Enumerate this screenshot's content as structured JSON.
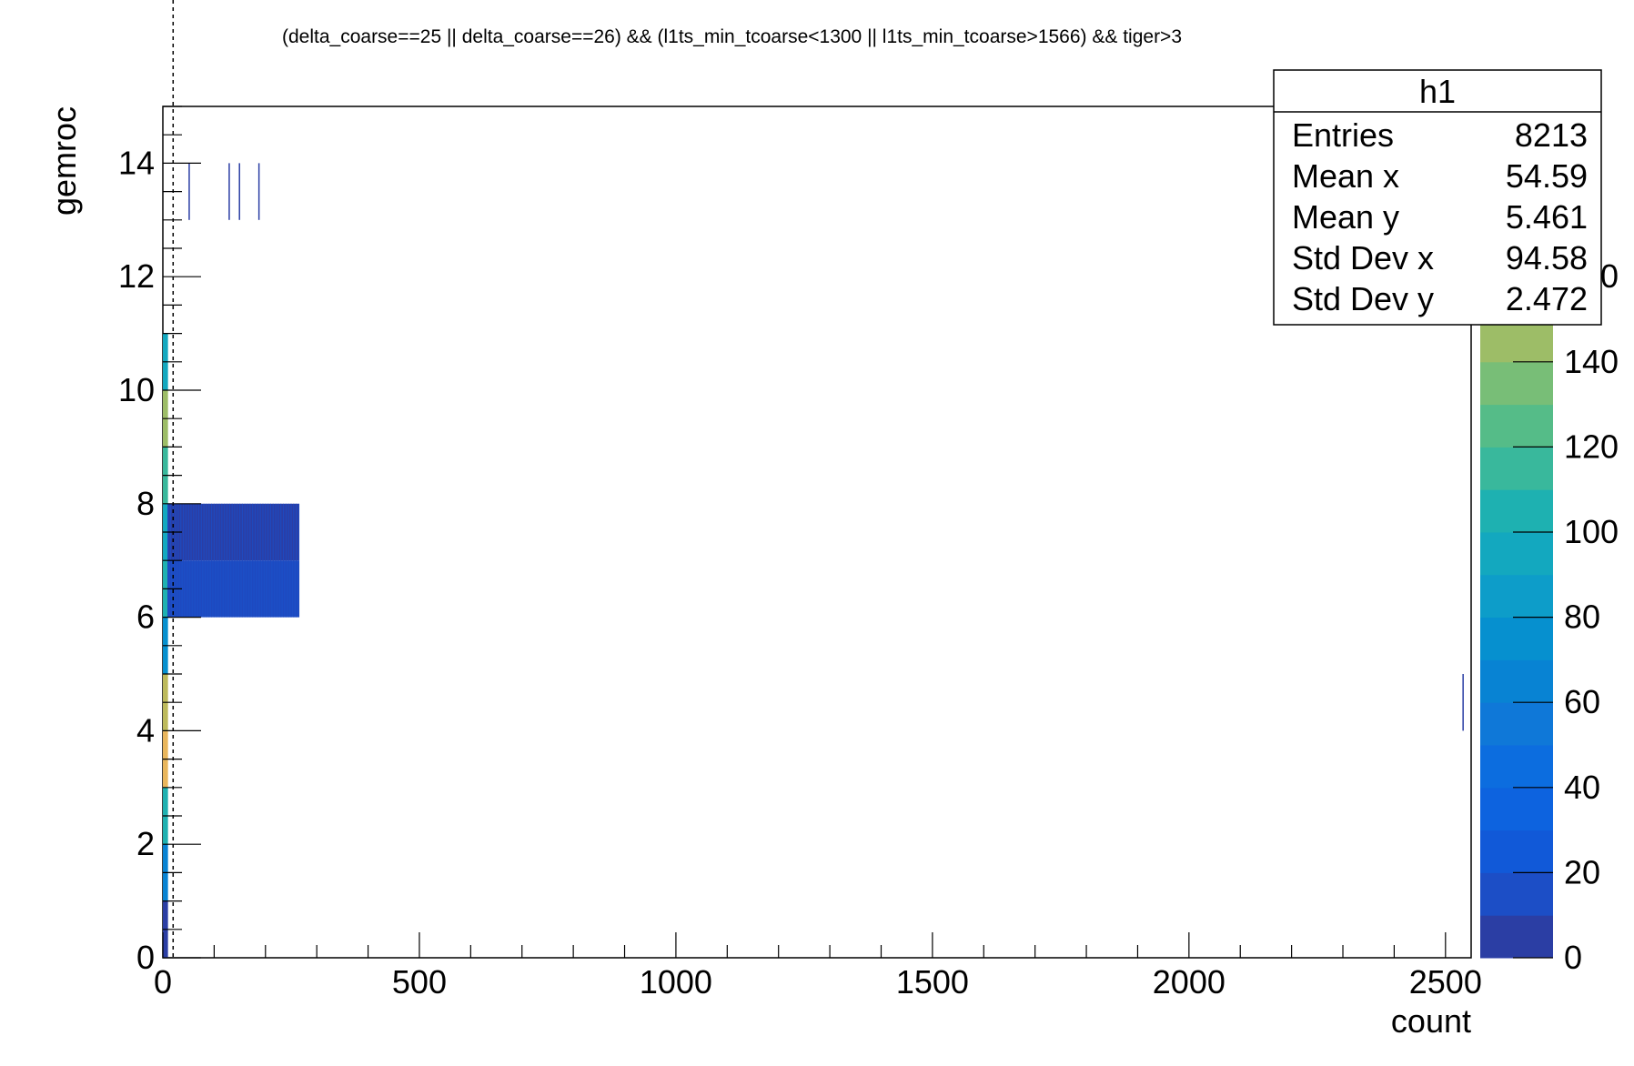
{
  "chart_data": {
    "type": "heatmap",
    "title": "(delta_coarse==25 || delta_coarse==26) && (l1ts_min_tcoarse<1300 || l1ts_min_tcoarse>1566) && tiger>3",
    "xlabel": "count",
    "ylabel": "gemroc",
    "xlim": [
      0,
      2550
    ],
    "ylim": [
      0,
      15
    ],
    "x_ticks": [
      "0",
      "500",
      "1000",
      "1500",
      "2000",
      "2500"
    ],
    "y_ticks": [
      "0",
      "2",
      "4",
      "6",
      "8",
      "10",
      "12",
      "14"
    ],
    "colorbar": {
      "range": [
        0,
        200
      ],
      "ticks": [
        "0",
        "20",
        "40",
        "60",
        "80",
        "100",
        "120",
        "140",
        "160"
      ],
      "colors": [
        "#2b3ea4",
        "#1c4ec6",
        "#1159d8",
        "#0d63df",
        "#0c6ddf",
        "#0f78d8",
        "#0883d3",
        "#0690cf",
        "#0d9dc9",
        "#13a8bf",
        "#1eb1b1",
        "#39b89c",
        "#55bc88",
        "#78be77",
        "#9dbd67",
        "#bdba5c",
        "#d6b55d",
        "#e9b65c",
        "#f6c44c",
        "#f9e41f"
      ]
    },
    "stats": {
      "name": "h1",
      "rows": [
        {
          "label": "Entries",
          "value": "8213"
        },
        {
          "label": "Mean x",
          "value": "54.59"
        },
        {
          "label": "Mean y",
          "value": "5.461"
        },
        {
          "label": "Std Dev x",
          "value": "94.58"
        },
        {
          "label": "Std Dev y",
          "value": "2.472"
        }
      ]
    },
    "cells": [
      {
        "x": 0,
        "x2": 10,
        "y": 0,
        "value": 5
      },
      {
        "x": 0,
        "x2": 10,
        "y": 1,
        "value": 60
      },
      {
        "x": 0,
        "x2": 10,
        "y": 2,
        "value": 100
      },
      {
        "x": 0,
        "x2": 10,
        "y": 3,
        "value": 170
      },
      {
        "x": 0,
        "x2": 10,
        "y": 4,
        "value": 150
      },
      {
        "x": 0,
        "x2": 10,
        "y": 5,
        "value": 75
      },
      {
        "x": 0,
        "x2": 10,
        "y": 6,
        "value": 100
      },
      {
        "x": 0,
        "x2": 10,
        "y": 7,
        "value": 90
      },
      {
        "x": 0,
        "x2": 10,
        "y": 8,
        "value": 110
      },
      {
        "x": 0,
        "x2": 10,
        "y": 9,
        "value": 140
      },
      {
        "x": 0,
        "x2": 10,
        "y": 10,
        "value": 95
      },
      {
        "x": 10,
        "x2": 265,
        "y": 6,
        "value": 15
      },
      {
        "x": 10,
        "x2": 265,
        "y": 7,
        "value": 5
      },
      {
        "x": 50,
        "x2": 52,
        "y": 13,
        "value": 5
      },
      {
        "x": 128,
        "x2": 130,
        "y": 13,
        "value": 5
      },
      {
        "x": 148,
        "x2": 150,
        "y": 13,
        "value": 5
      },
      {
        "x": 186,
        "x2": 188,
        "y": 13,
        "value": 5
      },
      {
        "x": 2533,
        "x2": 2535,
        "y": 4,
        "value": 5
      }
    ],
    "reference_line_x": 20
  }
}
